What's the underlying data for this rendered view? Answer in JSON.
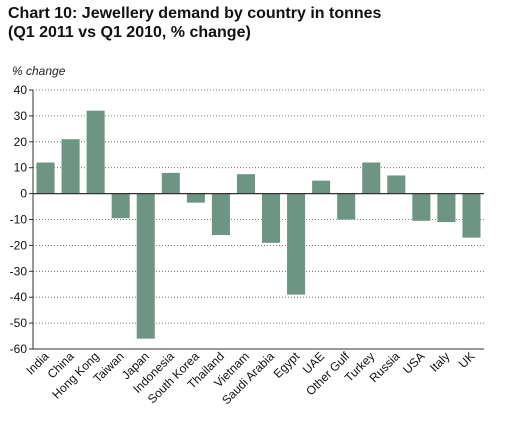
{
  "chart_data": {
    "type": "bar",
    "title": "Chart 10: Jewellery demand by country in tonnes",
    "subtitle": "(Q1 2011 vs Q1 2010, % change)",
    "ylabel": "% change",
    "xlabel": "",
    "ylim": [
      -60,
      40
    ],
    "yticks": [
      "40",
      "30",
      "20",
      "10",
      "0",
      "-10",
      "-20",
      "-30",
      "-40",
      "-50",
      "-60"
    ],
    "grid": "horizontal-dotted",
    "bar_color": "#6e9483",
    "categories": [
      "India",
      "China",
      "Hong Kong",
      "Taiwan",
      "Japan",
      "Indonesia",
      "South Korea",
      "Thailand",
      "Vietnam",
      "Saudi Arabia",
      "Egypt",
      "UAE",
      "Other Gulf",
      "Turkey",
      "Russia",
      "USA",
      "Italy",
      "UK"
    ],
    "values": [
      12,
      21,
      32,
      -9.5,
      -56,
      8,
      -3.5,
      -16,
      7.5,
      -19,
      -39,
      5,
      -10,
      12,
      7,
      -10.5,
      -11,
      -17
    ]
  }
}
